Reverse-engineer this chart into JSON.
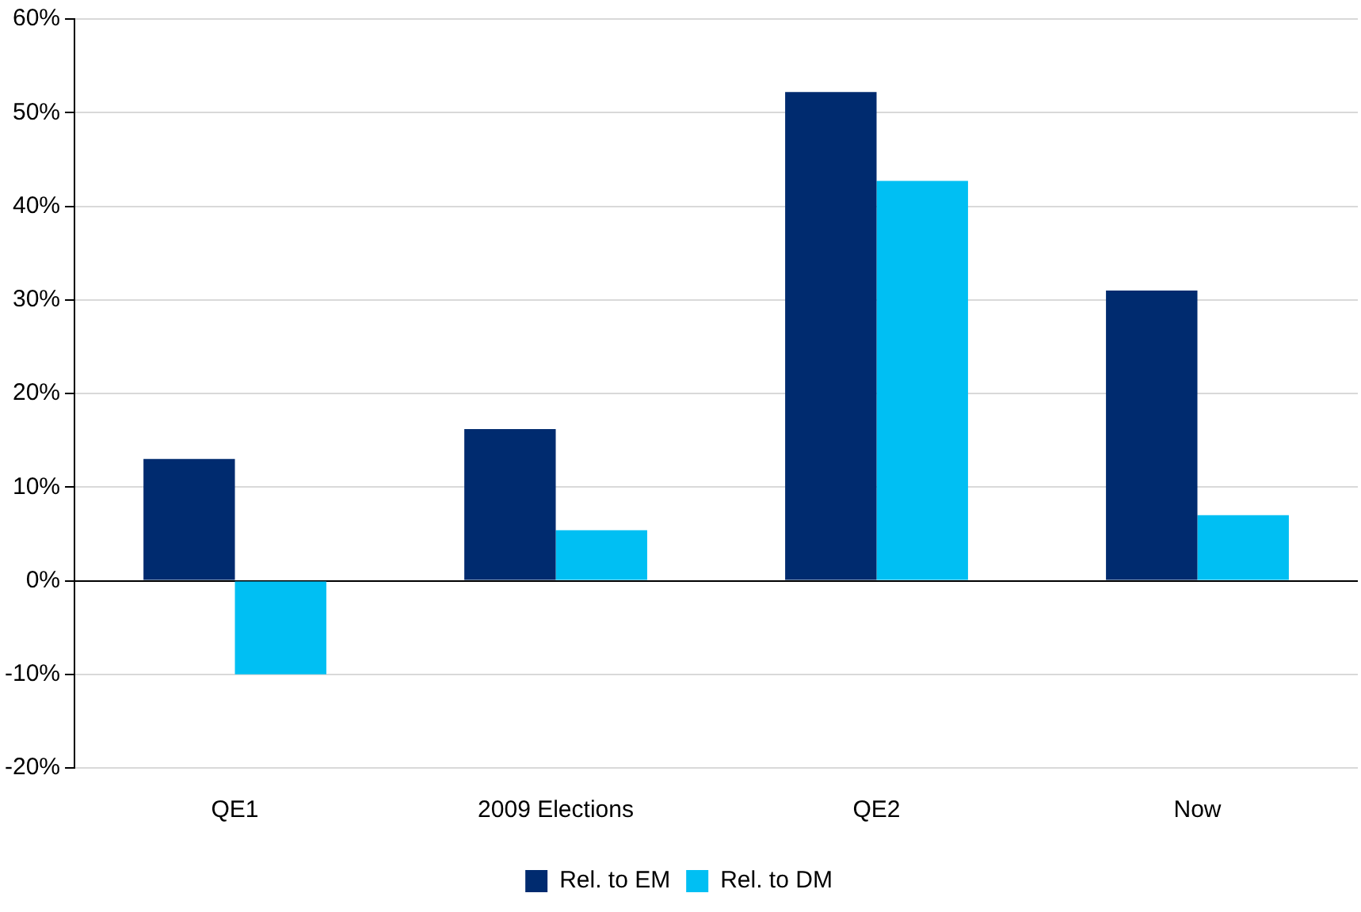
{
  "chart_data": {
    "type": "bar",
    "categories": [
      "QE1",
      "2009 Elections",
      "QE2",
      "Now"
    ],
    "series": [
      {
        "name": "Rel. to EM",
        "color": "#002b6f",
        "values": [
          13,
          16.2,
          52.2,
          31
        ]
      },
      {
        "name": "Rel. to DM",
        "color": "#00bff3",
        "values": [
          -10,
          5.4,
          42.7,
          7
        ]
      }
    ],
    "ylim": [
      -20,
      60
    ],
    "yticks": [
      {
        "value": -20,
        "label": "-20%"
      },
      {
        "value": -10,
        "label": "-10%"
      },
      {
        "value": 0,
        "label": "0%"
      },
      {
        "value": 10,
        "label": "10%"
      },
      {
        "value": 20,
        "label": "20%"
      },
      {
        "value": 30,
        "label": "30%"
      },
      {
        "value": 40,
        "label": "40%"
      },
      {
        "value": 50,
        "label": "50%"
      },
      {
        "value": 60,
        "label": "60%"
      }
    ],
    "grid": "y",
    "legend": "bottom"
  }
}
